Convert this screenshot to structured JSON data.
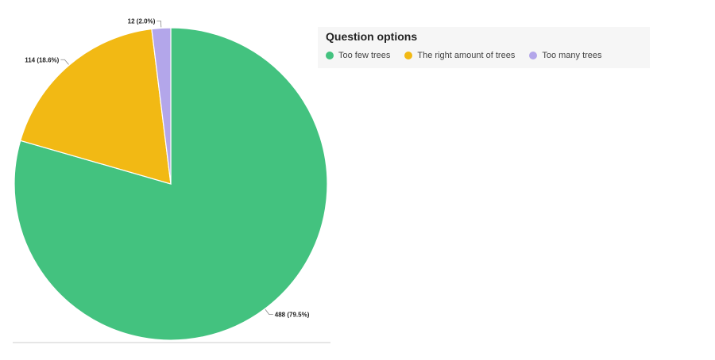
{
  "chart_data": {
    "type": "pie",
    "legend": {
      "title": "Question options",
      "placement": "top-right"
    },
    "slices": [
      {
        "name": "Too few trees",
        "value": 488,
        "label": "488 (79.5%)",
        "color": "#43c27f"
      },
      {
        "name": "The right amount of trees",
        "value": 114,
        "label": "114 (18.6%)",
        "color": "#f2b914"
      },
      {
        "name": "Too many trees",
        "value": 12,
        "label": "12 (2.0%)",
        "color": "#b3a6ea"
      }
    ]
  }
}
